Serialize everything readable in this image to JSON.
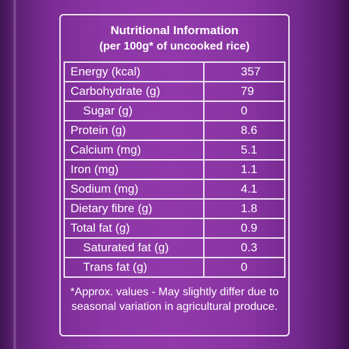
{
  "label": {
    "title": "Nutritional Information",
    "subtitle": "(per 100g* of uncooked rice)",
    "rows": [
      {
        "name": "Energy (kcal)",
        "value": "357"
      },
      {
        "name": "Carbohydrate (g)",
        "value": "79"
      },
      {
        "name": "Sugar (g)",
        "value": "0"
      },
      {
        "name": "Protein (g)",
        "value": "8.6"
      },
      {
        "name": "Calcium (mg)",
        "value": "5.1"
      },
      {
        "name": "Iron (mg)",
        "value": "1.1"
      },
      {
        "name": "Sodium (mg)",
        "value": "4.1"
      },
      {
        "name": "Dietary fibre (g)",
        "value": "1.8"
      },
      {
        "name": "Total fat (g)",
        "value": "0.9"
      },
      {
        "name": "Saturated fat (g)",
        "value": "0.3"
      },
      {
        "name": "Trans fat (g)",
        "value": "0"
      }
    ],
    "footnote": "*Approx. values - May slightly differ due to seasonal variation in agricultural produce."
  },
  "colors": {
    "background": "#8d36a6",
    "text": "#ffffff",
    "border": "#f2e7f5"
  }
}
